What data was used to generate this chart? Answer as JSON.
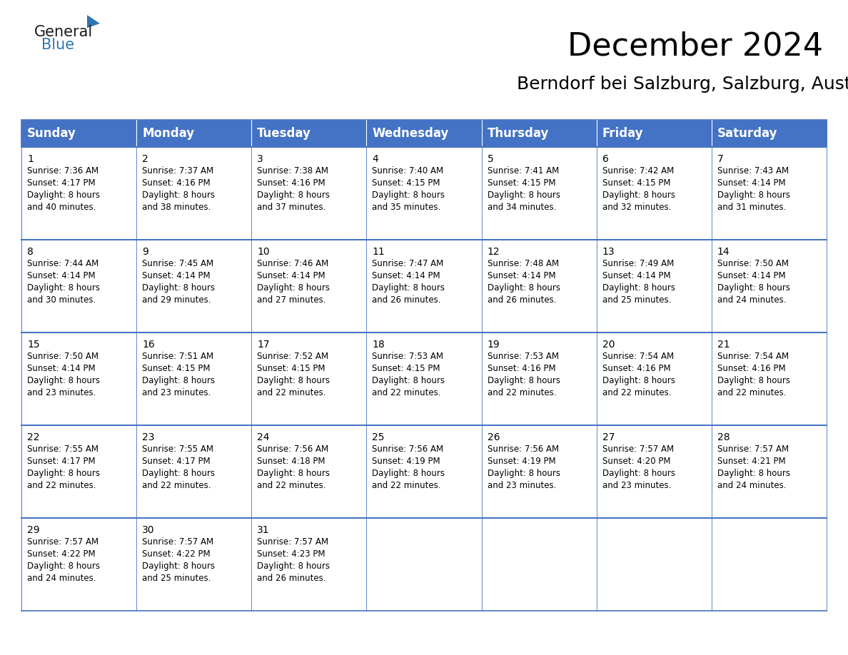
{
  "title": "December 2024",
  "subtitle": "Berndorf bei Salzburg, Salzburg, Austria",
  "header_bg_color": "#4472C4",
  "header_text_color": "#FFFFFF",
  "cell_bg_color": "#FFFFFF",
  "border_color": "#4472C4",
  "text_color": "#000000",
  "light_gray": "#F2F2F2",
  "day_headers": [
    "Sunday",
    "Monday",
    "Tuesday",
    "Wednesday",
    "Thursday",
    "Friday",
    "Saturday"
  ],
  "title_fontsize": 32,
  "subtitle_fontsize": 18,
  "header_fontsize": 12,
  "cell_day_fontsize": 10,
  "cell_info_fontsize": 8.5,
  "logo_general_fontsize": 15,
  "logo_blue_fontsize": 15,
  "calendar": [
    [
      {
        "day": 1,
        "sunrise": "7:36 AM",
        "sunset": "4:17 PM",
        "daylight_h": "8 hours",
        "daylight_m": "and 40 minutes."
      },
      {
        "day": 2,
        "sunrise": "7:37 AM",
        "sunset": "4:16 PM",
        "daylight_h": "8 hours",
        "daylight_m": "and 38 minutes."
      },
      {
        "day": 3,
        "sunrise": "7:38 AM",
        "sunset": "4:16 PM",
        "daylight_h": "8 hours",
        "daylight_m": "and 37 minutes."
      },
      {
        "day": 4,
        "sunrise": "7:40 AM",
        "sunset": "4:15 PM",
        "daylight_h": "8 hours",
        "daylight_m": "and 35 minutes."
      },
      {
        "day": 5,
        "sunrise": "7:41 AM",
        "sunset": "4:15 PM",
        "daylight_h": "8 hours",
        "daylight_m": "and 34 minutes."
      },
      {
        "day": 6,
        "sunrise": "7:42 AM",
        "sunset": "4:15 PM",
        "daylight_h": "8 hours",
        "daylight_m": "and 32 minutes."
      },
      {
        "day": 7,
        "sunrise": "7:43 AM",
        "sunset": "4:14 PM",
        "daylight_h": "8 hours",
        "daylight_m": "and 31 minutes."
      }
    ],
    [
      {
        "day": 8,
        "sunrise": "7:44 AM",
        "sunset": "4:14 PM",
        "daylight_h": "8 hours",
        "daylight_m": "and 30 minutes."
      },
      {
        "day": 9,
        "sunrise": "7:45 AM",
        "sunset": "4:14 PM",
        "daylight_h": "8 hours",
        "daylight_m": "and 29 minutes."
      },
      {
        "day": 10,
        "sunrise": "7:46 AM",
        "sunset": "4:14 PM",
        "daylight_h": "8 hours",
        "daylight_m": "and 27 minutes."
      },
      {
        "day": 11,
        "sunrise": "7:47 AM",
        "sunset": "4:14 PM",
        "daylight_h": "8 hours",
        "daylight_m": "and 26 minutes."
      },
      {
        "day": 12,
        "sunrise": "7:48 AM",
        "sunset": "4:14 PM",
        "daylight_h": "8 hours",
        "daylight_m": "and 26 minutes."
      },
      {
        "day": 13,
        "sunrise": "7:49 AM",
        "sunset": "4:14 PM",
        "daylight_h": "8 hours",
        "daylight_m": "and 25 minutes."
      },
      {
        "day": 14,
        "sunrise": "7:50 AM",
        "sunset": "4:14 PM",
        "daylight_h": "8 hours",
        "daylight_m": "and 24 minutes."
      }
    ],
    [
      {
        "day": 15,
        "sunrise": "7:50 AM",
        "sunset": "4:14 PM",
        "daylight_h": "8 hours",
        "daylight_m": "and 23 minutes."
      },
      {
        "day": 16,
        "sunrise": "7:51 AM",
        "sunset": "4:15 PM",
        "daylight_h": "8 hours",
        "daylight_m": "and 23 minutes."
      },
      {
        "day": 17,
        "sunrise": "7:52 AM",
        "sunset": "4:15 PM",
        "daylight_h": "8 hours",
        "daylight_m": "and 22 minutes."
      },
      {
        "day": 18,
        "sunrise": "7:53 AM",
        "sunset": "4:15 PM",
        "daylight_h": "8 hours",
        "daylight_m": "and 22 minutes."
      },
      {
        "day": 19,
        "sunrise": "7:53 AM",
        "sunset": "4:16 PM",
        "daylight_h": "8 hours",
        "daylight_m": "and 22 minutes."
      },
      {
        "day": 20,
        "sunrise": "7:54 AM",
        "sunset": "4:16 PM",
        "daylight_h": "8 hours",
        "daylight_m": "and 22 minutes."
      },
      {
        "day": 21,
        "sunrise": "7:54 AM",
        "sunset": "4:16 PM",
        "daylight_h": "8 hours",
        "daylight_m": "and 22 minutes."
      }
    ],
    [
      {
        "day": 22,
        "sunrise": "7:55 AM",
        "sunset": "4:17 PM",
        "daylight_h": "8 hours",
        "daylight_m": "and 22 minutes."
      },
      {
        "day": 23,
        "sunrise": "7:55 AM",
        "sunset": "4:17 PM",
        "daylight_h": "8 hours",
        "daylight_m": "and 22 minutes."
      },
      {
        "day": 24,
        "sunrise": "7:56 AM",
        "sunset": "4:18 PM",
        "daylight_h": "8 hours",
        "daylight_m": "and 22 minutes."
      },
      {
        "day": 25,
        "sunrise": "7:56 AM",
        "sunset": "4:19 PM",
        "daylight_h": "8 hours",
        "daylight_m": "and 22 minutes."
      },
      {
        "day": 26,
        "sunrise": "7:56 AM",
        "sunset": "4:19 PM",
        "daylight_h": "8 hours",
        "daylight_m": "and 23 minutes."
      },
      {
        "day": 27,
        "sunrise": "7:57 AM",
        "sunset": "4:20 PM",
        "daylight_h": "8 hours",
        "daylight_m": "and 23 minutes."
      },
      {
        "day": 28,
        "sunrise": "7:57 AM",
        "sunset": "4:21 PM",
        "daylight_h": "8 hours",
        "daylight_m": "and 24 minutes."
      }
    ],
    [
      {
        "day": 29,
        "sunrise": "7:57 AM",
        "sunset": "4:22 PM",
        "daylight_h": "8 hours",
        "daylight_m": "and 24 minutes."
      },
      {
        "day": 30,
        "sunrise": "7:57 AM",
        "sunset": "4:22 PM",
        "daylight_h": "8 hours",
        "daylight_m": "and 25 minutes."
      },
      {
        "day": 31,
        "sunrise": "7:57 AM",
        "sunset": "4:23 PM",
        "daylight_h": "8 hours",
        "daylight_m": "and 26 minutes."
      },
      null,
      null,
      null,
      null
    ]
  ]
}
